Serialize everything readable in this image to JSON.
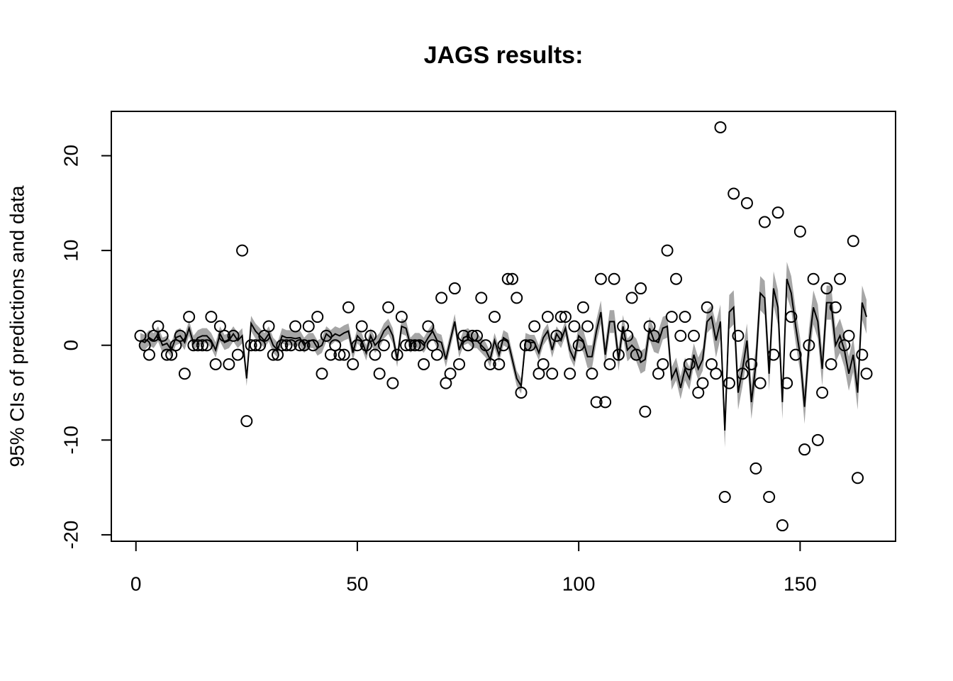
{
  "chart_data": {
    "type": "scatter",
    "title": "JAGS results:",
    "y_label": "95% CIs of predictions and data",
    "x": [
      1,
      2,
      3,
      4,
      5,
      6,
      7,
      8,
      9,
      10,
      11,
      12,
      13,
      14,
      15,
      16,
      17,
      18,
      19,
      20,
      21,
      22,
      23,
      24,
      25,
      26,
      27,
      28,
      29,
      30,
      31,
      32,
      33,
      34,
      35,
      36,
      37,
      38,
      39,
      40,
      41,
      42,
      43,
      44,
      45,
      46,
      47,
      48,
      49,
      50,
      51,
      52,
      53,
      54,
      55,
      56,
      57,
      58,
      59,
      60,
      61,
      62,
      63,
      64,
      65,
      66,
      67,
      68,
      69,
      70,
      71,
      72,
      73,
      74,
      75,
      76,
      77,
      78,
      79,
      80,
      81,
      82,
      83,
      84,
      85,
      86,
      87,
      88,
      89,
      90,
      91,
      92,
      93,
      94,
      95,
      96,
      97,
      98,
      99,
      100,
      101,
      102,
      103,
      104,
      105,
      106,
      107,
      108,
      109,
      110,
      111,
      112,
      113,
      114,
      115,
      116,
      117,
      118,
      119,
      120,
      121,
      122,
      123,
      124,
      125,
      126,
      127,
      128,
      129,
      130,
      131,
      132,
      133,
      134,
      135,
      136,
      137,
      138,
      139,
      140,
      141,
      142,
      143,
      144,
      145,
      146,
      147,
      148,
      149,
      150,
      151,
      152,
      153,
      154,
      155,
      156,
      157,
      158,
      159,
      160,
      161,
      162,
      163,
      164,
      165
    ],
    "points": {
      "color": "#000000",
      "values": [
        1,
        0,
        -1,
        1,
        2,
        1,
        -1,
        -1,
        0,
        1,
        -3,
        3,
        0,
        0,
        0,
        0,
        3,
        -2,
        2,
        1,
        -2,
        1,
        -1,
        10,
        -8,
        0,
        0,
        0,
        1,
        2,
        -1,
        -1,
        0,
        0,
        0,
        2,
        0,
        0,
        2,
        0,
        3,
        -3,
        1,
        -1,
        0,
        -1,
        -1,
        4,
        -2,
        0,
        2,
        0,
        1,
        -1,
        -3,
        0,
        4,
        -4,
        -1,
        3,
        0,
        0,
        0,
        0,
        -2,
        2,
        0,
        -1,
        5,
        -4,
        -3,
        6,
        -2,
        1,
        0,
        1,
        1,
        5,
        0,
        -2,
        3,
        -2,
        0,
        7,
        7,
        5,
        -5,
        0,
        0,
        2,
        -3,
        -2,
        3,
        -3,
        1,
        3,
        3,
        -3,
        2,
        0,
        4,
        2,
        -3,
        -6,
        7,
        -6,
        -2,
        7,
        -1,
        2,
        1,
        5,
        -1,
        6,
        -7,
        2,
        1,
        -3,
        -2,
        10,
        3,
        7,
        1,
        3,
        -2,
        1,
        -5,
        -4,
        4,
        -2,
        -3,
        23,
        -16,
        -4,
        16,
        1,
        -3,
        15,
        -2,
        -13,
        -4,
        13,
        -16,
        -1,
        14,
        -19,
        -4,
        3,
        -1,
        12,
        -11,
        0,
        7,
        -10,
        -5,
        6,
        -2,
        4,
        7,
        0,
        1,
        11,
        -14,
        -1,
        -3
      ]
    },
    "line": {
      "color": "#000000",
      "band_color": "#a6a6a6",
      "values": [
        0.5,
        0.3,
        0.8,
        0.5,
        1.2,
        0,
        0.2,
        -0.5,
        0.8,
        1.0,
        0.3,
        1.8,
        0.2,
        0.8,
        1.0,
        1.0,
        0.5,
        -0.5,
        1.2,
        0.3,
        0.5,
        1.2,
        0.5,
        1.0,
        -3.5,
        2.3,
        1.5,
        1.0,
        0.5,
        1.2,
        0,
        -0.5,
        1.0,
        0.8,
        0.8,
        0.7,
        0.8,
        0,
        0.5,
        0.5,
        -0.3,
        0,
        1.2,
        0.8,
        1.2,
        1.0,
        1.3,
        1.5,
        -0.8,
        1.0,
        0.5,
        -0.8,
        1.0,
        0,
        0.5,
        1.5,
        2,
        1.0,
        -1.5,
        2.0,
        1.8,
        0,
        0.5,
        0.5,
        0,
        0.8,
        1.5,
        0.5,
        0.3,
        -1.5,
        0.5,
        2.5,
        -0.5,
        0.8,
        1.0,
        0.5,
        0.5,
        0,
        -0.5,
        -1.5,
        0.5,
        -1.0,
        0.8,
        0.5,
        -1.5,
        -3.5,
        -4.3,
        0.5,
        0.3,
        0.3,
        -0.8,
        0.8,
        1.5,
        -0.5,
        1.2,
        0.5,
        1.8,
        -0.5,
        -1.5,
        1.0,
        0.5,
        -1.2,
        -1.2,
        1.5,
        3.5,
        -1.0,
        2.5,
        2.5,
        -1.5,
        2.0,
        -0.5,
        0,
        -0.5,
        -1.8,
        -1.5,
        1.8,
        0.5,
        0.3,
        1.8,
        2.0,
        -3.5,
        -2.5,
        -4.5,
        -2.5,
        -3.5,
        -1,
        -2.5,
        -1.5,
        2.5,
        3.0,
        0.5,
        2.5,
        -9,
        3.5,
        4.0,
        -5,
        -2.5,
        0.5,
        -6,
        -2,
        5.5,
        5.0,
        -3,
        6,
        4,
        -6,
        7,
        5.5,
        2,
        -1,
        -6.5,
        0,
        4,
        2.5,
        -2.5,
        4.5,
        4.5,
        0,
        1,
        -0.5,
        -3,
        -1,
        -5,
        4.5,
        3
      ],
      "ci_halfwidth": [
        0.8,
        0.8,
        0.8,
        0.8,
        0.8,
        0.8,
        0.8,
        0.8,
        0.8,
        0.8,
        0.8,
        0.8,
        0.8,
        0.8,
        0.8,
        0.8,
        0.8,
        0.8,
        0.8,
        0.8,
        0.8,
        0.8,
        0.8,
        0.8,
        0.8,
        0.8,
        0.8,
        0.8,
        0.8,
        0.8,
        0.8,
        0.8,
        0.8,
        0.8,
        0.8,
        0.8,
        0.8,
        0.8,
        0.8,
        0.8,
        0.8,
        0.8,
        0.8,
        0.8,
        0.8,
        0.8,
        0.8,
        0.8,
        0.8,
        0.8,
        0.8,
        0.8,
        0.8,
        0.8,
        0.8,
        0.8,
        0.8,
        0.8,
        0.8,
        0.8,
        0.8,
        0.8,
        0.8,
        0.8,
        0.8,
        0.8,
        0.8,
        0.8,
        0.8,
        0.8,
        0.8,
        0.8,
        0.8,
        0.8,
        0.8,
        0.8,
        0.8,
        0.8,
        0.8,
        0.8,
        0.8,
        0.8,
        0.8,
        0.8,
        0.8,
        0.8,
        0.8,
        0.8,
        0.8,
        0.8,
        0.8,
        0.8,
        0.8,
        0.8,
        0.8,
        0.8,
        0.8,
        0.8,
        0.8,
        1.2,
        1.2,
        1.2,
        1.2,
        1.2,
        1.2,
        1.2,
        1.2,
        1.2,
        1.2,
        1.2,
        1.2,
        1.2,
        1.2,
        1.2,
        1.2,
        1.2,
        1.2,
        1.2,
        1.2,
        1.2,
        1.2,
        1.2,
        1.2,
        1.2,
        1.2,
        1.2,
        1.2,
        1.2,
        1.2,
        1.2,
        1.8,
        1.8,
        1.8,
        1.8,
        1.8,
        1.8,
        1.8,
        1.8,
        1.8,
        1.8,
        1.8,
        1.8,
        1.8,
        1.8,
        1.8,
        1.8,
        1.8,
        1.8,
        1.8,
        1.8,
        1.8,
        1.8,
        1.8,
        1.8,
        1.8,
        1.8,
        1.8,
        1.8,
        1.8,
        1.8,
        1.8,
        1.8,
        1.8,
        1.8,
        1.8
      ]
    },
    "xlim": [
      -5.56,
      171.56
    ],
    "ylim": [
      -20.68,
      24.68
    ],
    "xticks": [
      0,
      50,
      100,
      150
    ],
    "yticks": [
      -20,
      -10,
      0,
      10,
      20
    ]
  }
}
